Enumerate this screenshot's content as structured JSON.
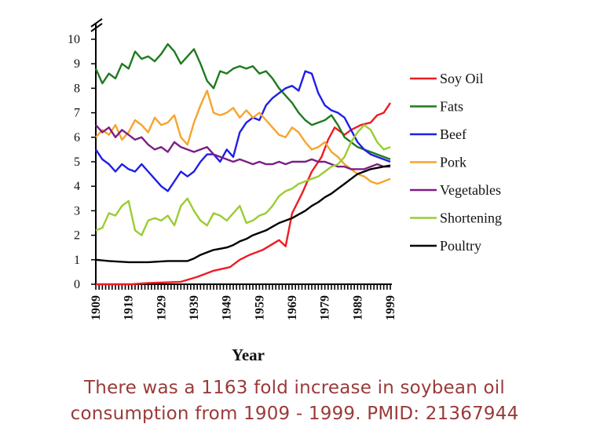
{
  "chart_data": {
    "type": "line",
    "title": "",
    "xlabel": "Year",
    "ylabel": "",
    "xlim": [
      1909,
      1999
    ],
    "ylim": [
      0,
      10
    ],
    "x_ticks": [
      "1909",
      "1919",
      "1929",
      "1939",
      "1949",
      "1959",
      "1969",
      "1979",
      "1989",
      "1999"
    ],
    "y_ticks": [
      "0",
      "1",
      "2",
      "3",
      "4",
      "5",
      "6",
      "7",
      "8",
      "9",
      "10"
    ],
    "legend_position": "right",
    "series": [
      {
        "name": "Soy Oil",
        "color": "#ee1c24",
        "points": [
          [
            1909,
            0.0
          ],
          [
            1920,
            0.0
          ],
          [
            1925,
            0.05
          ],
          [
            1935,
            0.1
          ],
          [
            1940,
            0.3
          ],
          [
            1945,
            0.55
          ],
          [
            1950,
            0.7
          ],
          [
            1953,
            1.0
          ],
          [
            1956,
            1.2
          ],
          [
            1960,
            1.4
          ],
          [
            1965,
            1.8
          ],
          [
            1967,
            1.55
          ],
          [
            1969,
            2.9
          ],
          [
            1972,
            3.7
          ],
          [
            1975,
            4.6
          ],
          [
            1978,
            5.2
          ],
          [
            1980,
            5.9
          ],
          [
            1982,
            6.4
          ],
          [
            1985,
            6.1
          ],
          [
            1987,
            6.3
          ],
          [
            1990,
            6.5
          ],
          [
            1993,
            6.6
          ],
          [
            1995,
            6.9
          ],
          [
            1997,
            7.0
          ],
          [
            1999,
            7.4
          ]
        ]
      },
      {
        "name": "Fats",
        "color": "#1f7a1f",
        "points": [
          [
            1909,
            8.8
          ],
          [
            1911,
            8.2
          ],
          [
            1913,
            8.6
          ],
          [
            1915,
            8.4
          ],
          [
            1917,
            9.0
          ],
          [
            1919,
            8.8
          ],
          [
            1921,
            9.5
          ],
          [
            1923,
            9.2
          ],
          [
            1925,
            9.3
          ],
          [
            1927,
            9.1
          ],
          [
            1929,
            9.4
          ],
          [
            1931,
            9.8
          ],
          [
            1933,
            9.5
          ],
          [
            1935,
            9.0
          ],
          [
            1937,
            9.3
          ],
          [
            1939,
            9.6
          ],
          [
            1941,
            9.0
          ],
          [
            1943,
            8.3
          ],
          [
            1945,
            8.0
          ],
          [
            1947,
            8.7
          ],
          [
            1949,
            8.6
          ],
          [
            1951,
            8.8
          ],
          [
            1953,
            8.9
          ],
          [
            1955,
            8.8
          ],
          [
            1957,
            8.9
          ],
          [
            1959,
            8.6
          ],
          [
            1961,
            8.7
          ],
          [
            1963,
            8.4
          ],
          [
            1965,
            8.0
          ],
          [
            1967,
            7.7
          ],
          [
            1969,
            7.4
          ],
          [
            1971,
            7.0
          ],
          [
            1973,
            6.7
          ],
          [
            1975,
            6.5
          ],
          [
            1977,
            6.6
          ],
          [
            1979,
            6.7
          ],
          [
            1981,
            6.9
          ],
          [
            1983,
            6.5
          ],
          [
            1985,
            6.0
          ],
          [
            1987,
            5.8
          ],
          [
            1989,
            5.6
          ],
          [
            1991,
            5.5
          ],
          [
            1993,
            5.4
          ],
          [
            1995,
            5.3
          ],
          [
            1997,
            5.2
          ],
          [
            1999,
            5.1
          ]
        ]
      },
      {
        "name": "Beef",
        "color": "#1f1fe6",
        "points": [
          [
            1909,
            5.5
          ],
          [
            1911,
            5.1
          ],
          [
            1913,
            4.9
          ],
          [
            1915,
            4.6
          ],
          [
            1917,
            4.9
          ],
          [
            1919,
            4.7
          ],
          [
            1921,
            4.6
          ],
          [
            1923,
            4.9
          ],
          [
            1925,
            4.6
          ],
          [
            1927,
            4.3
          ],
          [
            1929,
            4.0
          ],
          [
            1931,
            3.8
          ],
          [
            1933,
            4.2
          ],
          [
            1935,
            4.6
          ],
          [
            1937,
            4.4
          ],
          [
            1939,
            4.6
          ],
          [
            1941,
            5.0
          ],
          [
            1943,
            5.3
          ],
          [
            1945,
            5.3
          ],
          [
            1947,
            5.0
          ],
          [
            1949,
            5.5
          ],
          [
            1951,
            5.2
          ],
          [
            1953,
            6.2
          ],
          [
            1955,
            6.6
          ],
          [
            1957,
            6.8
          ],
          [
            1959,
            6.7
          ],
          [
            1961,
            7.3
          ],
          [
            1963,
            7.6
          ],
          [
            1965,
            7.8
          ],
          [
            1967,
            8.0
          ],
          [
            1969,
            8.1
          ],
          [
            1971,
            7.9
          ],
          [
            1973,
            8.7
          ],
          [
            1975,
            8.6
          ],
          [
            1977,
            7.8
          ],
          [
            1979,
            7.3
          ],
          [
            1981,
            7.1
          ],
          [
            1983,
            7.0
          ],
          [
            1985,
            6.8
          ],
          [
            1987,
            6.3
          ],
          [
            1989,
            5.8
          ],
          [
            1991,
            5.5
          ],
          [
            1993,
            5.3
          ],
          [
            1995,
            5.2
          ],
          [
            1997,
            5.1
          ],
          [
            1999,
            5.0
          ]
        ]
      },
      {
        "name": "Pork",
        "color": "#f7a42b",
        "points": [
          [
            1909,
            6.0
          ],
          [
            1911,
            6.3
          ],
          [
            1913,
            6.1
          ],
          [
            1915,
            6.5
          ],
          [
            1917,
            5.9
          ],
          [
            1919,
            6.2
          ],
          [
            1921,
            6.7
          ],
          [
            1923,
            6.5
          ],
          [
            1925,
            6.2
          ],
          [
            1927,
            6.8
          ],
          [
            1929,
            6.5
          ],
          [
            1931,
            6.6
          ],
          [
            1933,
            6.9
          ],
          [
            1935,
            6.0
          ],
          [
            1937,
            5.7
          ],
          [
            1939,
            6.6
          ],
          [
            1941,
            7.3
          ],
          [
            1943,
            7.9
          ],
          [
            1945,
            7.0
          ],
          [
            1947,
            6.9
          ],
          [
            1949,
            7.0
          ],
          [
            1951,
            7.2
          ],
          [
            1953,
            6.8
          ],
          [
            1955,
            7.1
          ],
          [
            1957,
            6.8
          ],
          [
            1959,
            7.0
          ],
          [
            1961,
            6.7
          ],
          [
            1963,
            6.4
          ],
          [
            1965,
            6.1
          ],
          [
            1967,
            6.0
          ],
          [
            1969,
            6.4
          ],
          [
            1971,
            6.2
          ],
          [
            1973,
            5.8
          ],
          [
            1975,
            5.5
          ],
          [
            1977,
            5.6
          ],
          [
            1979,
            5.8
          ],
          [
            1981,
            5.4
          ],
          [
            1983,
            5.2
          ],
          [
            1985,
            4.9
          ],
          [
            1987,
            4.7
          ],
          [
            1989,
            4.5
          ],
          [
            1991,
            4.4
          ],
          [
            1993,
            4.2
          ],
          [
            1995,
            4.1
          ],
          [
            1997,
            4.2
          ],
          [
            1999,
            4.3
          ]
        ]
      },
      {
        "name": "Vegetables",
        "color": "#7b1f86",
        "points": [
          [
            1909,
            6.5
          ],
          [
            1911,
            6.2
          ],
          [
            1913,
            6.4
          ],
          [
            1915,
            6.0
          ],
          [
            1917,
            6.3
          ],
          [
            1919,
            6.1
          ],
          [
            1921,
            5.9
          ],
          [
            1923,
            6.0
          ],
          [
            1925,
            5.7
          ],
          [
            1927,
            5.5
          ],
          [
            1929,
            5.6
          ],
          [
            1931,
            5.4
          ],
          [
            1933,
            5.8
          ],
          [
            1935,
            5.6
          ],
          [
            1937,
            5.5
          ],
          [
            1939,
            5.4
          ],
          [
            1941,
            5.5
          ],
          [
            1943,
            5.6
          ],
          [
            1945,
            5.3
          ],
          [
            1947,
            5.2
          ],
          [
            1949,
            5.1
          ],
          [
            1951,
            5.0
          ],
          [
            1953,
            5.1
          ],
          [
            1955,
            5.0
          ],
          [
            1957,
            4.9
          ],
          [
            1959,
            5.0
          ],
          [
            1961,
            4.9
          ],
          [
            1963,
            4.9
          ],
          [
            1965,
            5.0
          ],
          [
            1967,
            4.9
          ],
          [
            1969,
            5.0
          ],
          [
            1971,
            5.0
          ],
          [
            1973,
            5.0
          ],
          [
            1975,
            5.1
          ],
          [
            1977,
            5.0
          ],
          [
            1979,
            5.0
          ],
          [
            1981,
            4.9
          ],
          [
            1983,
            4.8
          ],
          [
            1985,
            4.8
          ],
          [
            1987,
            4.7
          ],
          [
            1989,
            4.7
          ],
          [
            1991,
            4.7
          ],
          [
            1993,
            4.8
          ],
          [
            1995,
            4.9
          ],
          [
            1997,
            4.8
          ],
          [
            1999,
            4.8
          ]
        ]
      },
      {
        "name": "Shortening",
        "color": "#9acd32",
        "points": [
          [
            1909,
            2.2
          ],
          [
            1911,
            2.3
          ],
          [
            1913,
            2.9
          ],
          [
            1915,
            2.8
          ],
          [
            1917,
            3.2
          ],
          [
            1919,
            3.4
          ],
          [
            1921,
            2.2
          ],
          [
            1923,
            2.0
          ],
          [
            1925,
            2.6
          ],
          [
            1927,
            2.7
          ],
          [
            1929,
            2.6
          ],
          [
            1931,
            2.8
          ],
          [
            1933,
            2.4
          ],
          [
            1935,
            3.2
          ],
          [
            1937,
            3.5
          ],
          [
            1939,
            3.0
          ],
          [
            1941,
            2.6
          ],
          [
            1943,
            2.4
          ],
          [
            1945,
            2.9
          ],
          [
            1947,
            2.8
          ],
          [
            1949,
            2.6
          ],
          [
            1951,
            2.9
          ],
          [
            1953,
            3.2
          ],
          [
            1955,
            2.5
          ],
          [
            1957,
            2.6
          ],
          [
            1959,
            2.8
          ],
          [
            1961,
            2.9
          ],
          [
            1963,
            3.2
          ],
          [
            1965,
            3.6
          ],
          [
            1967,
            3.8
          ],
          [
            1969,
            3.9
          ],
          [
            1971,
            4.1
          ],
          [
            1973,
            4.2
          ],
          [
            1975,
            4.3
          ],
          [
            1977,
            4.4
          ],
          [
            1979,
            4.6
          ],
          [
            1981,
            4.8
          ],
          [
            1983,
            4.9
          ],
          [
            1985,
            5.2
          ],
          [
            1987,
            5.8
          ],
          [
            1989,
            6.2
          ],
          [
            1991,
            6.5
          ],
          [
            1993,
            6.3
          ],
          [
            1995,
            5.8
          ],
          [
            1997,
            5.5
          ],
          [
            1999,
            5.6
          ]
        ]
      },
      {
        "name": "Poultry",
        "color": "#000000",
        "points": [
          [
            1909,
            1.0
          ],
          [
            1913,
            0.95
          ],
          [
            1919,
            0.9
          ],
          [
            1925,
            0.9
          ],
          [
            1931,
            0.95
          ],
          [
            1937,
            0.95
          ],
          [
            1939,
            1.05
          ],
          [
            1941,
            1.2
          ],
          [
            1943,
            1.3
          ],
          [
            1945,
            1.4
          ],
          [
            1947,
            1.45
          ],
          [
            1949,
            1.5
          ],
          [
            1951,
            1.6
          ],
          [
            1953,
            1.75
          ],
          [
            1955,
            1.85
          ],
          [
            1957,
            2.0
          ],
          [
            1959,
            2.1
          ],
          [
            1961,
            2.2
          ],
          [
            1963,
            2.35
          ],
          [
            1965,
            2.5
          ],
          [
            1967,
            2.6
          ],
          [
            1969,
            2.7
          ],
          [
            1971,
            2.85
          ],
          [
            1973,
            3.0
          ],
          [
            1975,
            3.2
          ],
          [
            1977,
            3.35
          ],
          [
            1979,
            3.55
          ],
          [
            1981,
            3.7
          ],
          [
            1983,
            3.9
          ],
          [
            1985,
            4.1
          ],
          [
            1987,
            4.3
          ],
          [
            1989,
            4.5
          ],
          [
            1991,
            4.6
          ],
          [
            1993,
            4.7
          ],
          [
            1995,
            4.75
          ],
          [
            1997,
            4.8
          ],
          [
            1999,
            4.85
          ]
        ]
      }
    ]
  },
  "caption": {
    "line1": "There was a 1163 fold increase in soybean oil",
    "line2": "consumption from 1909 - 1999. PMID: 21367944"
  }
}
